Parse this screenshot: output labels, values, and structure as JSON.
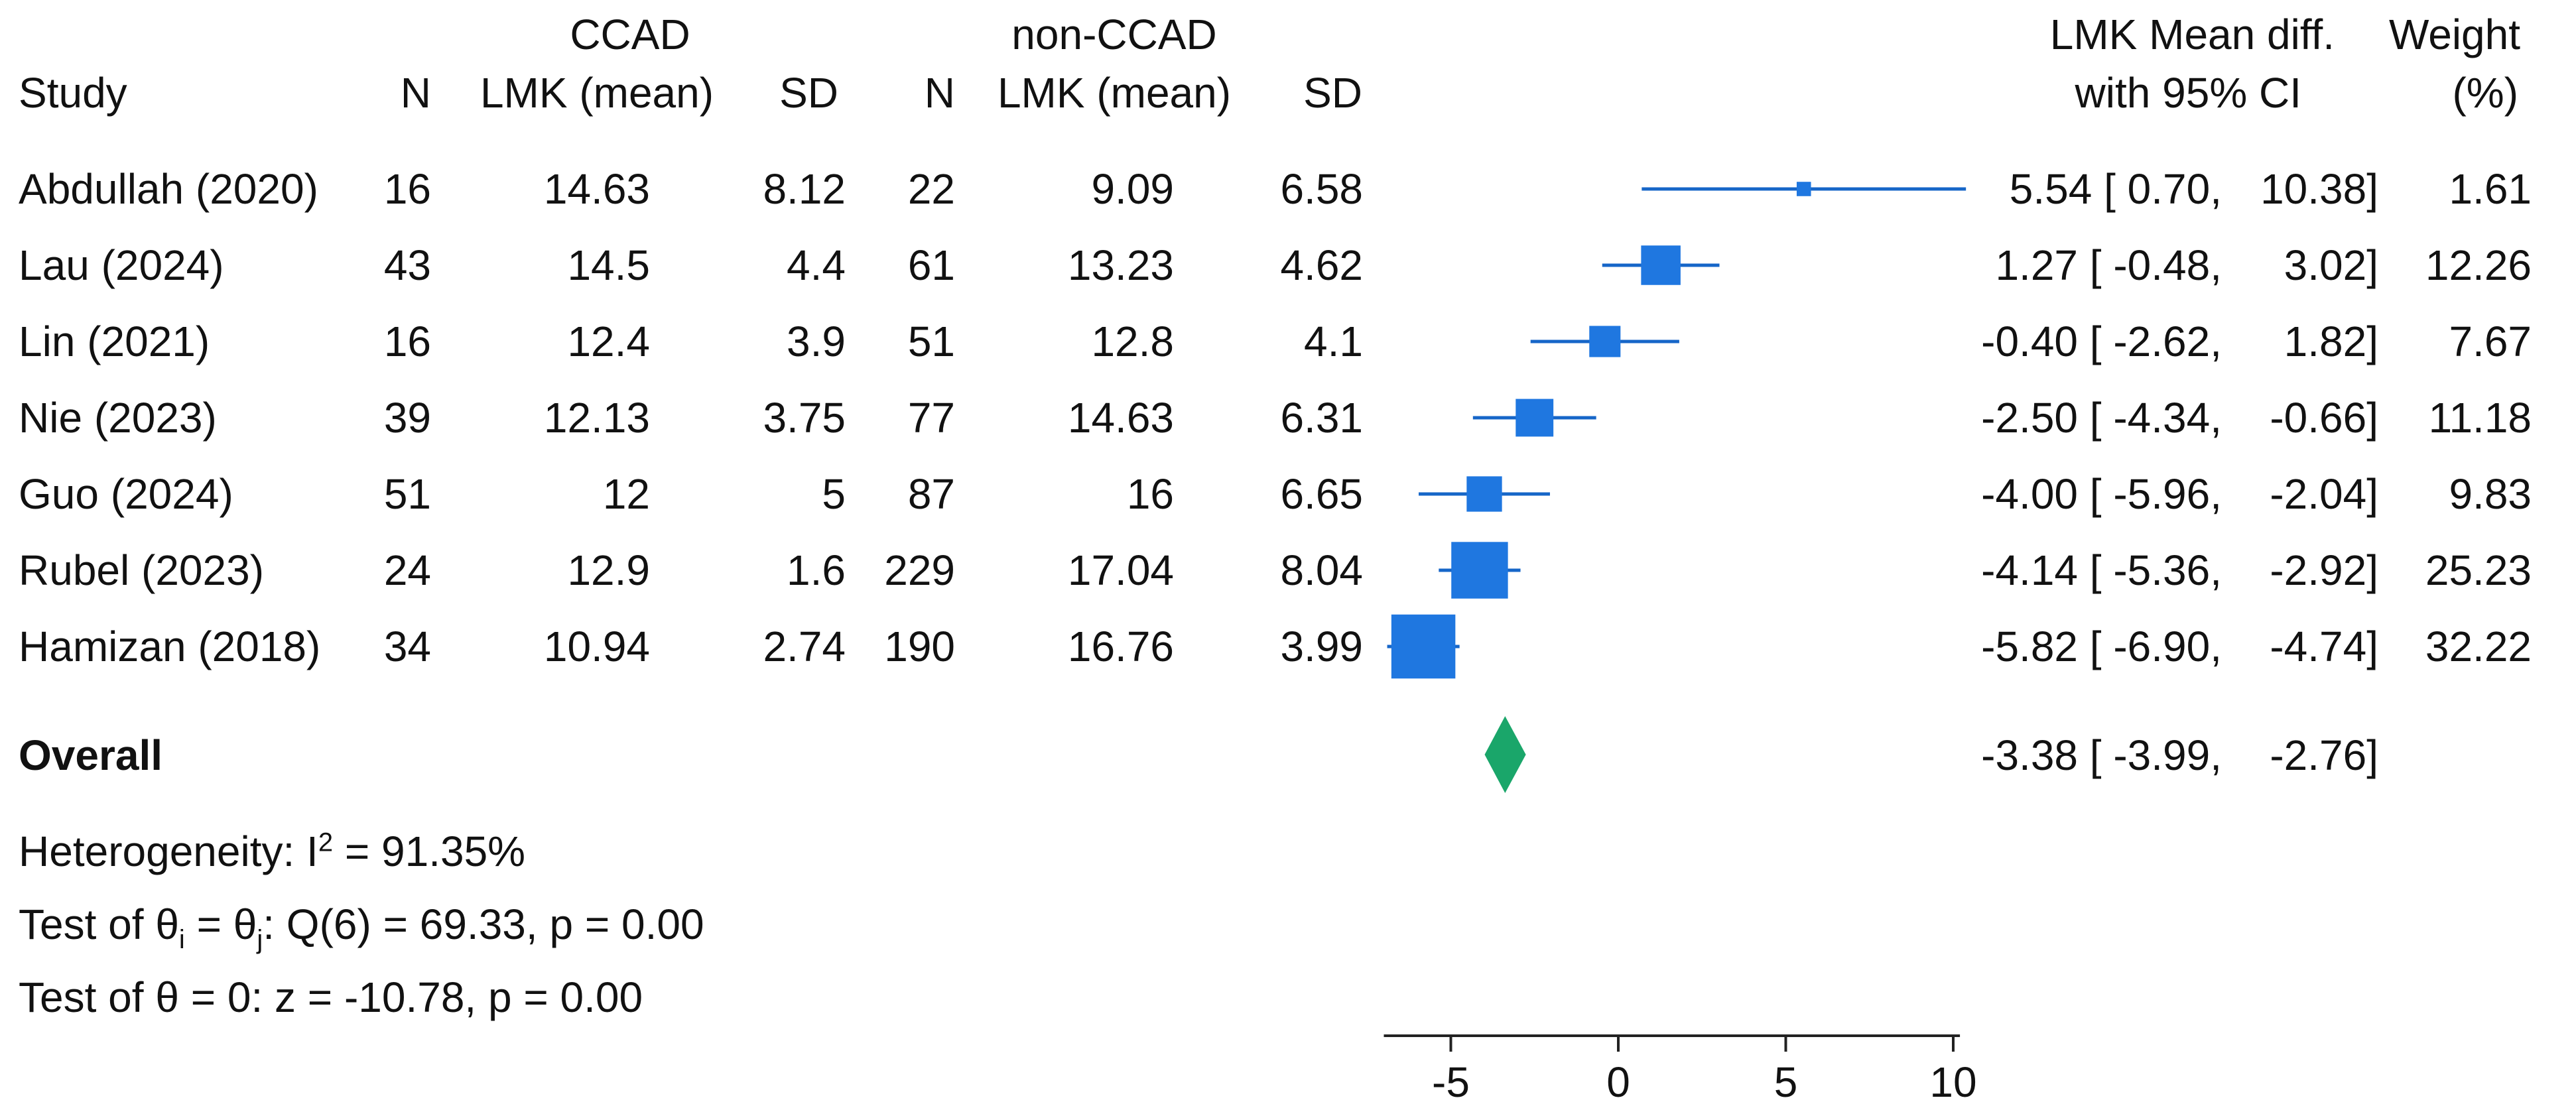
{
  "headers": {
    "study": "Study",
    "ccad_group": "CCAD",
    "nonccad_group": "non-CCAD",
    "n1": "N",
    "mean1": "LMK (mean)",
    "sd1": "SD",
    "n2": "N",
    "mean2": "LMK (mean)",
    "sd2": "SD",
    "effect_line1": "LMK Mean diff.",
    "effect_line2": "with 95% CI",
    "weight_line1": "Weight",
    "weight_line2": "(%)"
  },
  "overall": {
    "label": "Overall",
    "ci_text": "-3.38 [ -3.99,",
    "ci_high_text": "-2.76]"
  },
  "footer": {
    "heterogeneity_prefix": "Heterogeneity: I",
    "heterogeneity_sup": "2",
    "heterogeneity_suffix": " = 91.35%",
    "test1_prefix": "Test of θ",
    "test1_sub1": "i",
    "test1_mid": " = θ",
    "test1_sub2": "j",
    "test1_suffix": ": Q(6) = 69.33, p = 0.00",
    "test2": "Test of θ = 0: z = -10.78, p = 0.00"
  },
  "colors": {
    "study_marker": "#1f77e0",
    "ci_line": "#1666c8",
    "overall_diamond": "#1aa66a",
    "axis": "#222222"
  },
  "chart_data": {
    "type": "forest",
    "xlim": [
      -7,
      10.2
    ],
    "xticks": [
      "-5",
      "0",
      "5",
      "10"
    ],
    "studies": [
      {
        "study": "Abdullah (2020)",
        "n1": "16",
        "mean1": "14.63",
        "sd1": "8.12",
        "n2": "22",
        "mean2": "9.09",
        "sd2": "6.58",
        "md": 5.54,
        "lo": 0.7,
        "hi": 10.38,
        "md_text": "5.54 [  0.70,",
        "hi_text": "10.38]",
        "weight": "1.61"
      },
      {
        "study": "Lau (2024)",
        "n1": "43",
        "mean1": "14.5",
        "sd1": "4.4",
        "n2": "61",
        "mean2": "13.23",
        "sd2": "4.62",
        "md": 1.27,
        "lo": -0.48,
        "hi": 3.02,
        "md_text": "1.27 [ -0.48,",
        "hi_text": "3.02]",
        "weight": "12.26"
      },
      {
        "study": "Lin (2021)",
        "n1": "16",
        "mean1": "12.4",
        "sd1": "3.9",
        "n2": "51",
        "mean2": "12.8",
        "sd2": "4.1",
        "md": -0.4,
        "lo": -2.62,
        "hi": 1.82,
        "md_text": "-0.40 [ -2.62,",
        "hi_text": "1.82]",
        "weight": "7.67"
      },
      {
        "study": "Nie (2023)",
        "n1": "39",
        "mean1": "12.13",
        "sd1": "3.75",
        "n2": "77",
        "mean2": "14.63",
        "sd2": "6.31",
        "md": -2.5,
        "lo": -4.34,
        "hi": -0.66,
        "md_text": "-2.50 [ -4.34,",
        "hi_text": "-0.66]",
        "weight": "11.18"
      },
      {
        "study": "Guo (2024)",
        "n1": "51",
        "mean1": "12",
        "sd1": "5",
        "n2": "87",
        "mean2": "16",
        "sd2": "6.65",
        "md": -4.0,
        "lo": -5.96,
        "hi": -2.04,
        "md_text": "-4.00 [ -5.96,",
        "hi_text": "-2.04]",
        "weight": "9.83"
      },
      {
        "study": "Rubel (2023)",
        "n1": "24",
        "mean1": "12.9",
        "sd1": "1.6",
        "n2": "229",
        "mean2": "17.04",
        "sd2": "8.04",
        "md": -4.14,
        "lo": -5.36,
        "hi": -2.92,
        "md_text": "-4.14 [ -5.36,",
        "hi_text": "-2.92]",
        "weight": "25.23"
      },
      {
        "study": "Hamizan (2018)",
        "n1": "34",
        "mean1": "10.94",
        "sd1": "2.74",
        "n2": "190",
        "mean2": "16.76",
        "sd2": "3.99",
        "md": -5.82,
        "lo": -6.9,
        "hi": -4.74,
        "md_text": "-5.82 [ -6.90,",
        "hi_text": "-4.74]",
        "weight": "32.22"
      }
    ],
    "overall": {
      "md": -3.38,
      "lo": -3.99,
      "hi": -2.76
    }
  }
}
